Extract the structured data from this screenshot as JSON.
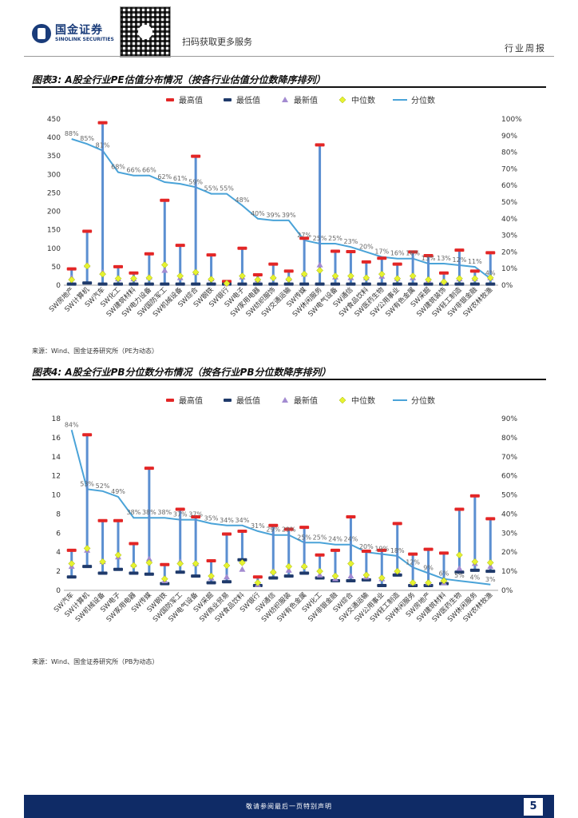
{
  "header": {
    "logo_cn": "国金证券",
    "logo_en": "SINOLINK SECURITIES",
    "qr_caption": "扫码获取更多服务",
    "report_type": "行业周报"
  },
  "footer": {
    "disclaimer": "敬请参阅最后一页特别声明",
    "page_number": "5"
  },
  "colors": {
    "max": "#e32626",
    "min": "#1f3a6b",
    "latest": "#a38bd1",
    "median": "#e6f230",
    "percentile": "#4aa3d8",
    "bar": "#5b8fd1",
    "footer": "#0f2b66"
  },
  "figures": [
    {
      "title": "图表3: A股全行业PE估值分布情况（按各行业估值分位数降序排列）",
      "source": "来源：Wind、国金证券研究所（PE为动态）"
    },
    {
      "title": "图表4: A股全行业PB分位数分布情况（按各行业PB分位数降序排列）",
      "source": "来源：Wind、国金证券研究所（PB为动态）"
    }
  ],
  "chart_data": [
    {
      "type": "bar",
      "title": "",
      "legend": [
        "最高值",
        "最低值",
        "最新值",
        "中位数",
        "分位数"
      ],
      "legend_position": "top",
      "categories": [
        "SW房地产",
        "SW计算机",
        "SW汽车",
        "SW化工",
        "SW建筑材料",
        "SW电力设备",
        "SW国防军工",
        "SW机械设备",
        "SW综合",
        "SW钢铁",
        "SW银行",
        "SW电子",
        "SW家用电器",
        "SW纺织服饰",
        "SW交通运输",
        "SW传媒",
        "SW休闲服务",
        "SW电气设备",
        "SW通信",
        "SW食品饮料",
        "SW医药生物",
        "SW公用事业",
        "SW有色金属",
        "SW采掘",
        "SW建筑装饰",
        "SW轻工制造",
        "SW非银金融",
        "SW农林牧渔"
      ],
      "yleft_ticks": [
        "0",
        "50",
        "100",
        "150",
        "200",
        "250",
        "300",
        "350",
        "400",
        "450"
      ],
      "yright_ticks": [
        "0%",
        "10%",
        "20%",
        "30%",
        "40%",
        "50%",
        "60%",
        "70%",
        "80%",
        "90%",
        "100%"
      ],
      "ylim_left": [
        0,
        450
      ],
      "ylim_right": [
        0,
        100
      ],
      "series": [
        {
          "name": "最高值",
          "values": [
            44,
            146,
            440,
            50,
            33,
            85,
            230,
            108,
            349,
            82,
            10,
            100,
            28,
            57,
            38,
            127,
            380,
            92,
            91,
            63,
            73,
            57,
            90,
            80,
            33,
            95,
            38,
            88
          ]
        },
        {
          "name": "最低值",
          "values": [
            3,
            6,
            3,
            3,
            3,
            3,
            3,
            3,
            3,
            3,
            3,
            3,
            3,
            3,
            3,
            3,
            3,
            3,
            3,
            3,
            3,
            3,
            3,
            3,
            3,
            3,
            3,
            3
          ]
        },
        {
          "name": "最新值",
          "values": [
            20,
            55,
            35,
            17,
            17,
            22,
            40,
            20,
            34,
            17,
            4,
            22,
            15,
            23,
            18,
            30,
            55,
            22,
            20,
            20,
            24,
            18,
            20,
            13,
            9,
            17,
            18,
            20
          ]
        },
        {
          "name": "中位数",
          "values": [
            15,
            52,
            30,
            18,
            18,
            20,
            55,
            25,
            35,
            16,
            5,
            25,
            15,
            20,
            16,
            30,
            40,
            25,
            25,
            20,
            30,
            18,
            25,
            15,
            9,
            18,
            18,
            20
          ]
        },
        {
          "name": "分位数",
          "values": [
            88,
            85,
            81,
            68,
            66,
            66,
            62,
            61,
            59,
            55,
            55,
            48,
            40,
            39,
            39,
            27,
            25,
            25,
            23,
            20,
            17,
            16,
            16,
            13,
            13,
            12,
            11,
            4
          ]
        }
      ],
      "percent_labels": [
        "88%",
        "85%",
        "81%",
        "68%",
        "66%",
        "66%",
        "62%",
        "61%",
        "59%",
        "55%",
        "55%",
        "48%",
        "40%",
        "39%",
        "39%",
        "27%",
        "25%",
        "25%",
        "23%",
        "20%",
        "17%",
        "16%",
        "16%",
        "13%",
        "13%",
        "12%",
        "11%",
        "4%"
      ]
    },
    {
      "type": "bar",
      "title": "",
      "legend": [
        "最高值",
        "最低值",
        "最新值",
        "中位数",
        "分位数"
      ],
      "legend_position": "top",
      "categories": [
        "SW汽车",
        "SW计算机",
        "SW机械设备",
        "SW电子",
        "SW家用电器",
        "SW传媒",
        "SW钢铁",
        "SW国防军工",
        "SW电气设备",
        "SW采掘",
        "SW商业贸易",
        "SW食品饮料",
        "SW银行",
        "SW通信",
        "SW纺织服装",
        "SW有色金属",
        "SW化工",
        "SW非银金融",
        "SW综合",
        "SW交通运输",
        "SW公用事业",
        "SW轻工制造",
        "SW休闲服务",
        "SW房地产",
        "SW建筑材料",
        "SW医药生物",
        "SW休闲服务",
        "SW农林牧渔"
      ],
      "yleft_ticks": [
        "0",
        "2",
        "4",
        "6",
        "8",
        "10",
        "12",
        "14",
        "16",
        "18"
      ],
      "yright_ticks": [
        "0%",
        "10%",
        "20%",
        "30%",
        "40%",
        "50%",
        "60%",
        "70%",
        "80%",
        "90%"
      ],
      "ylim_left": [
        0,
        18
      ],
      "ylim_right": [
        0,
        90
      ],
      "series": [
        {
          "name": "最高值",
          "values": [
            4.2,
            16.3,
            7.3,
            7.3,
            4.9,
            12.8,
            2.7,
            8.5,
            7.7,
            3.1,
            5.9,
            6.2,
            1.4,
            6.8,
            6.4,
            6.6,
            3.7,
            4.2,
            7.7,
            4.1,
            4.2,
            7.0,
            3.8,
            4.3,
            3.9,
            8.5,
            9.9,
            7.5
          ]
        },
        {
          "name": "最低值",
          "values": [
            1.4,
            2.5,
            1.8,
            2.2,
            1.8,
            1.7,
            0.7,
            1.9,
            1.5,
            0.8,
            0.9,
            3.2,
            0.5,
            1.3,
            1.5,
            1.8,
            1.3,
            1.0,
            1.0,
            1.1,
            0.5,
            1.6,
            0.5,
            0.5,
            0.7,
            1.9,
            2.1,
            2.0
          ]
        },
        {
          "name": "最新值",
          "values": [
            2.5,
            4.2,
            3.0,
            3.5,
            2.7,
            3.3,
            1.0,
            3.0,
            2.8,
            1.3,
            1.4,
            2.2,
            0.6,
            2.0,
            2.1,
            2.6,
            1.6,
            1.2,
            1.5,
            1.4,
            1.2,
            2.0,
            0.8,
            0.8,
            0.8,
            2.3,
            2.8,
            2.5
          ]
        },
        {
          "name": "中位数",
          "values": [
            2.8,
            4.4,
            3.0,
            3.7,
            2.6,
            2.9,
            1.2,
            2.8,
            2.8,
            1.5,
            2.6,
            2.9,
            0.8,
            1.9,
            2.5,
            2.5,
            2.0,
            1.5,
            2.8,
            1.6,
            1.3,
            2.0,
            0.8,
            0.8,
            1.0,
            3.7,
            3.0,
            2.9
          ]
        },
        {
          "name": "分位数",
          "values": [
            84,
            53,
            52,
            49,
            38,
            38,
            38,
            37,
            37,
            35,
            34,
            34,
            31,
            29,
            29,
            25,
            25,
            24,
            24,
            20,
            19,
            18,
            12,
            9,
            6,
            5,
            4,
            3
          ]
        }
      ],
      "percent_labels": [
        "84%",
        "53%",
        "52%",
        "49%",
        "38%",
        "38%",
        "38%",
        "37%",
        "37%",
        "35%",
        "34%",
        "34%",
        "31%",
        "29%",
        "29%",
        "25%",
        "25%",
        "24%",
        "24%",
        "20%",
        "19%",
        "18%",
        "12%",
        "9%",
        "6%",
        "5%",
        "4%",
        "3%"
      ]
    }
  ]
}
